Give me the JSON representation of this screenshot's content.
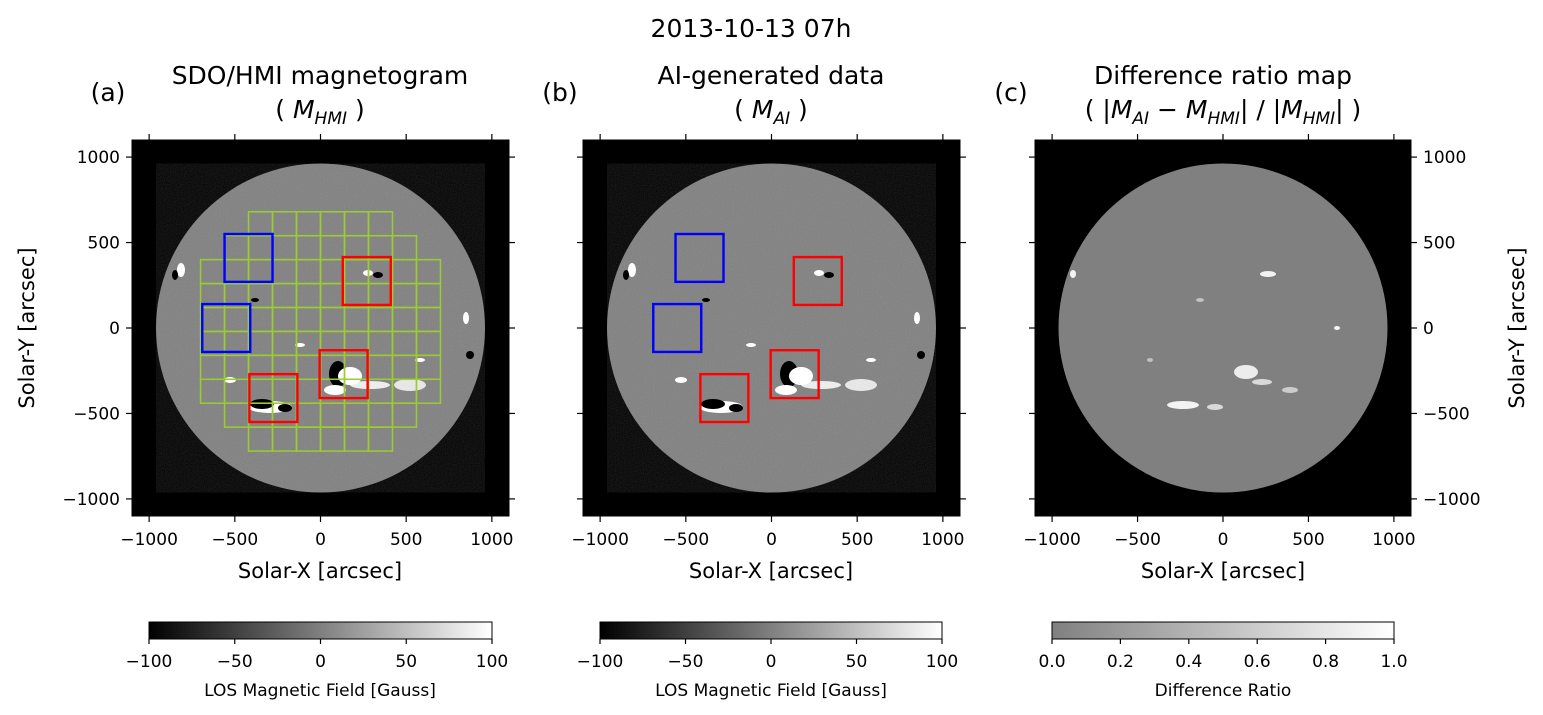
{
  "figure": {
    "suptitle": "2013-10-13 07h"
  },
  "chart_data": [
    {
      "type": "heatmap",
      "panel_label": "(a)",
      "title_line1": "SDO/HMI magnetogram",
      "title_line2": {
        "open": "( ",
        "sym": "M",
        "sub": "HMI",
        "close": " )"
      },
      "xlabel": "Solar-X [arcsec]",
      "ylabel": "Solar-Y [arcsec]",
      "xlim": [
        -1100,
        1100
      ],
      "ylim": [
        -1100,
        1100
      ],
      "xticks": [
        -1000,
        -500,
        0,
        500,
        1000
      ],
      "yticks": [
        -1000,
        -500,
        0,
        500,
        1000
      ],
      "xticklabels": [
        "−1000",
        "−500",
        "0",
        "500",
        "1000"
      ],
      "yticklabels": [
        "−1000",
        "−500",
        "0",
        "500",
        "1000"
      ],
      "disk_radius": 960,
      "blue_boxes": [
        {
          "x0": -560,
          "x1": -280,
          "y0": 270,
          "y1": 550
        },
        {
          "x0": -690,
          "x1": -410,
          "y0": -140,
          "y1": 140
        }
      ],
      "red_boxes": [
        {
          "x0": 130,
          "x1": 410,
          "y0": 135,
          "y1": 415
        },
        {
          "x0": -5,
          "x1": 275,
          "y0": -410,
          "y1": -130
        },
        {
          "x0": -415,
          "x1": -135,
          "y0": -550,
          "y1": -270
        }
      ],
      "grid_cell": 140,
      "grid_rows": [
        {
          "y0": 540,
          "y1": 680,
          "x0": -420,
          "x1": 420
        },
        {
          "y0": 400,
          "y1": 540,
          "x0": -560,
          "x1": 560
        },
        {
          "y0": 260,
          "y1": 400,
          "x0": -700,
          "x1": 700
        },
        {
          "y0": 120,
          "y1": 260,
          "x0": -700,
          "x1": 700
        },
        {
          "y0": -20,
          "y1": 120,
          "x0": -700,
          "x1": 700
        },
        {
          "y0": -160,
          "y1": -20,
          "x0": -700,
          "x1": 700
        },
        {
          "y0": -300,
          "y1": -160,
          "x0": -700,
          "x1": 700
        },
        {
          "y0": -440,
          "y1": -300,
          "x0": -700,
          "x1": 700
        },
        {
          "y0": -580,
          "y1": -440,
          "x0": -560,
          "x1": 560
        },
        {
          "y0": -720,
          "y1": -580,
          "x0": -420,
          "x1": 420
        }
      ],
      "colorbar": {
        "label": "LOS Magnetic Field [Gauss]",
        "range": [
          -100,
          100
        ],
        "ticks": [
          -100,
          -50,
          0,
          50,
          100
        ],
        "ticklabels": [
          "−100",
          "−50",
          "0",
          "50",
          "100"
        ],
        "colormap": "gray"
      }
    },
    {
      "type": "heatmap",
      "panel_label": "(b)",
      "title_line1": "AI-generated data",
      "title_line2": {
        "open": "( ",
        "sym": "M",
        "sub": "AI",
        "close": " )"
      },
      "xlabel": "Solar-X [arcsec]",
      "xlim": [
        -1100,
        1100
      ],
      "ylim": [
        -1100,
        1100
      ],
      "xticks": [
        -1000,
        -500,
        0,
        500,
        1000
      ],
      "xticklabels": [
        "−1000",
        "−500",
        "0",
        "500",
        "1000"
      ],
      "disk_radius": 960,
      "blue_boxes": [
        {
          "x0": -560,
          "x1": -280,
          "y0": 270,
          "y1": 550
        },
        {
          "x0": -690,
          "x1": -410,
          "y0": -140,
          "y1": 140
        }
      ],
      "red_boxes": [
        {
          "x0": 130,
          "x1": 410,
          "y0": 135,
          "y1": 415
        },
        {
          "x0": -5,
          "x1": 275,
          "y0": -410,
          "y1": -130
        },
        {
          "x0": -415,
          "x1": -135,
          "y0": -550,
          "y1": -270
        }
      ],
      "colorbar": {
        "label": "LOS Magnetic Field [Gauss]",
        "range": [
          -100,
          100
        ],
        "ticks": [
          -100,
          -50,
          0,
          50,
          100
        ],
        "ticklabels": [
          "−100",
          "−50",
          "0",
          "50",
          "100"
        ],
        "colormap": "gray"
      }
    },
    {
      "type": "heatmap",
      "panel_label": "(c)",
      "title_line1": "Difference ratio map",
      "title_line2_text": "( |M_AI − M_HMI| / |M_HMI| )",
      "xlabel": "Solar-X [arcsec]",
      "ylabel": "Solar-Y [arcsec]",
      "ylabel_position": "right",
      "xlim": [
        -1100,
        1100
      ],
      "ylim": [
        -1100,
        1100
      ],
      "xticks": [
        -1000,
        -500,
        0,
        500,
        1000
      ],
      "yticks": [
        -1000,
        -500,
        0,
        500,
        1000
      ],
      "xticklabels": [
        "−1000",
        "−500",
        "0",
        "500",
        "1000"
      ],
      "yticklabels": [
        "−1000",
        "−500",
        "0",
        "500",
        "1000"
      ],
      "disk_radius": 960,
      "colorbar": {
        "label": "Difference Ratio",
        "range": [
          0.0,
          1.0
        ],
        "ticks": [
          0.0,
          0.2,
          0.4,
          0.6,
          0.8,
          1.0
        ],
        "ticklabels": [
          "0.0",
          "0.2",
          "0.4",
          "0.6",
          "0.8",
          "1.0"
        ],
        "colormap": "gray-half"
      }
    }
  ],
  "colors": {
    "background": "#000000",
    "disk": "#808080",
    "blue_box": "#0000ff",
    "red_box": "#ff0000",
    "grid": "#9acd32",
    "axis": "#000000"
  }
}
